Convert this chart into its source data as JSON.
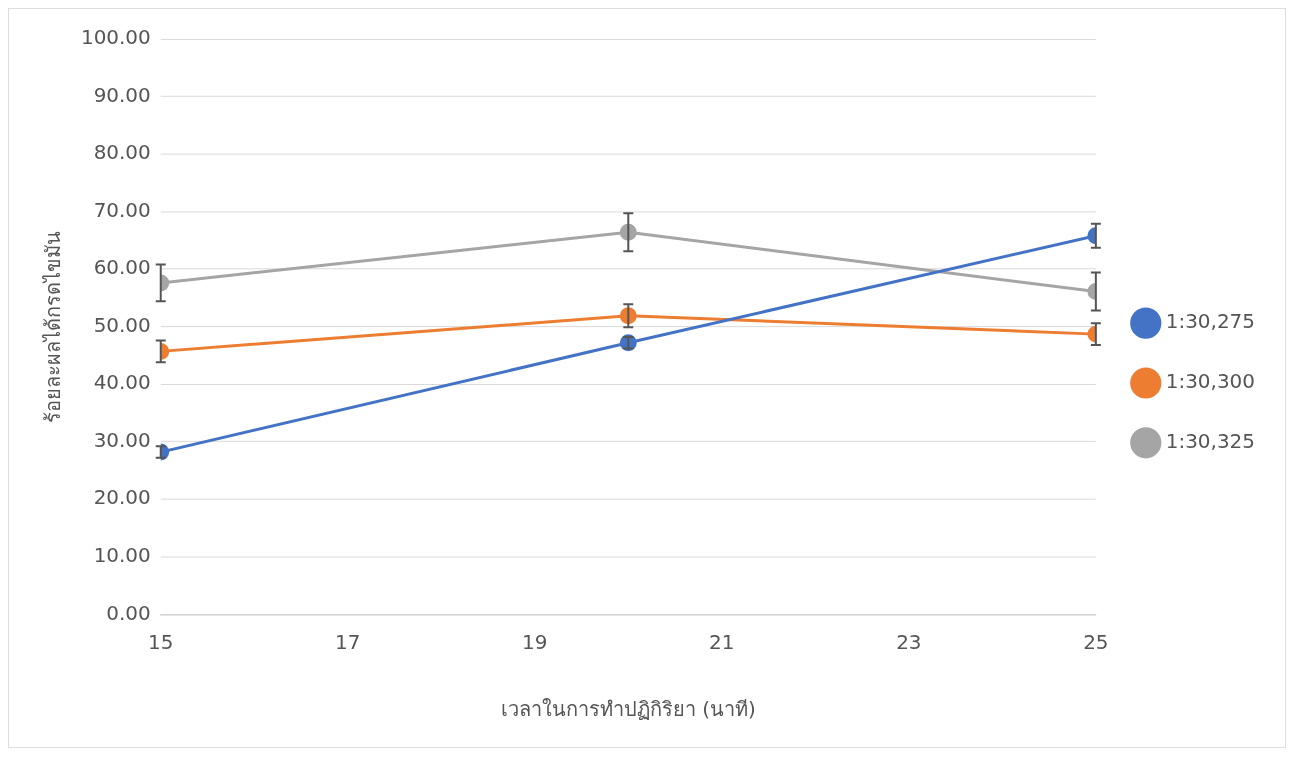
{
  "chart_data": {
    "type": "line",
    "xlabel": "เวลาในการทำปฏิกิริยา (นาที)",
    "ylabel": "ร้อยละผลได้กรดไขมัน",
    "x": [
      15,
      20,
      25
    ],
    "series": [
      {
        "name": "1:30,275",
        "color": "#4472c4",
        "values": [
          28.2,
          47.2,
          65.8
        ],
        "errors": [
          1,
          1,
          2.1
        ]
      },
      {
        "name": "1:30,300",
        "color": "#ed7d31",
        "values": [
          45.7,
          51.9,
          48.7
        ],
        "errors": [
          1.9,
          2,
          1.9
        ]
      },
      {
        "name": "1:30,325",
        "color": "#a5a5a5",
        "values": [
          57.6,
          66.4,
          56.1
        ],
        "errors": [
          3.2,
          3.3,
          3.3
        ]
      }
    ],
    "xlim": [
      15,
      25
    ],
    "xticks": [
      15,
      17,
      19,
      21,
      23,
      25
    ],
    "ylim": [
      0,
      100
    ],
    "yticks": [
      {
        "value": 0,
        "label": "0.00"
      },
      {
        "value": 10,
        "label": "10.00"
      },
      {
        "value": 20,
        "label": "20.00"
      },
      {
        "value": 30,
        "label": "30.00"
      },
      {
        "value": 40,
        "label": "40.00"
      },
      {
        "value": 50,
        "label": "50.00"
      },
      {
        "value": 60,
        "label": "60.00"
      },
      {
        "value": 70,
        "label": "70.00"
      },
      {
        "value": 80,
        "label": "80.00"
      },
      {
        "value": 90,
        "label": "90.00"
      },
      {
        "value": 100,
        "label": "100.00"
      }
    ],
    "grid": "y",
    "legend": "right",
    "marker": "circle",
    "line_style": "solid"
  }
}
